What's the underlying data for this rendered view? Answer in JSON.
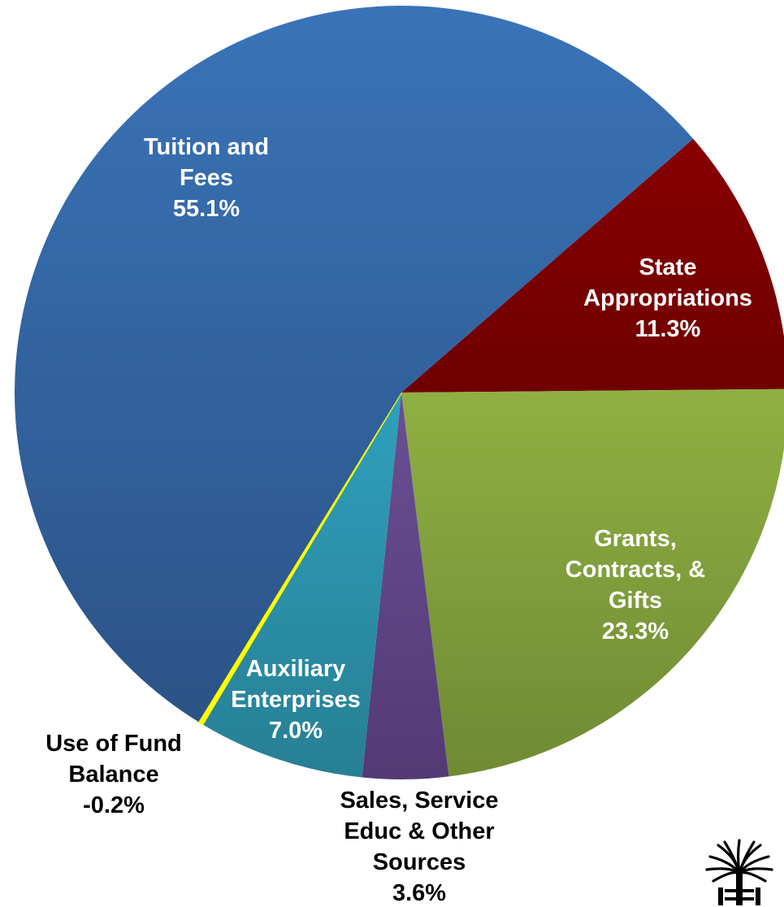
{
  "chart_data": {
    "type": "pie",
    "title": "",
    "slices": [
      {
        "label": [
          "Tuition and",
          "Fees"
        ],
        "pct_text": "55.1%",
        "value": 55.1,
        "color": "#3468aa",
        "label_inside": true
      },
      {
        "label": [
          "State",
          "Appropriations"
        ],
        "pct_text": "11.3%",
        "value": 11.3,
        "color": "#800000",
        "label_inside": true
      },
      {
        "label": [
          "Grants,",
          "Contracts, &",
          "Gifts"
        ],
        "pct_text": "23.3%",
        "value": 23.3,
        "color": "#8aaa3e",
        "label_inside": true
      },
      {
        "label": [
          "Sales, Service",
          "Educ & Other",
          "Sources"
        ],
        "pct_text": "3.6%",
        "value": 3.6,
        "color": "#5f4685",
        "label_inside": false
      },
      {
        "label": [
          "Auxiliary",
          "Enterprises"
        ],
        "pct_text": "7.0%",
        "value": 7.0,
        "color": "#2b91ac",
        "label_inside": true
      },
      {
        "label": [
          "Use of Fund",
          "Balance"
        ],
        "pct_text": "-0.2%",
        "value": -0.2,
        "color": "#ffff00",
        "label_inside": false
      }
    ],
    "legend": "none"
  },
  "logo": {
    "icon": "palmetto-tree-logo"
  }
}
